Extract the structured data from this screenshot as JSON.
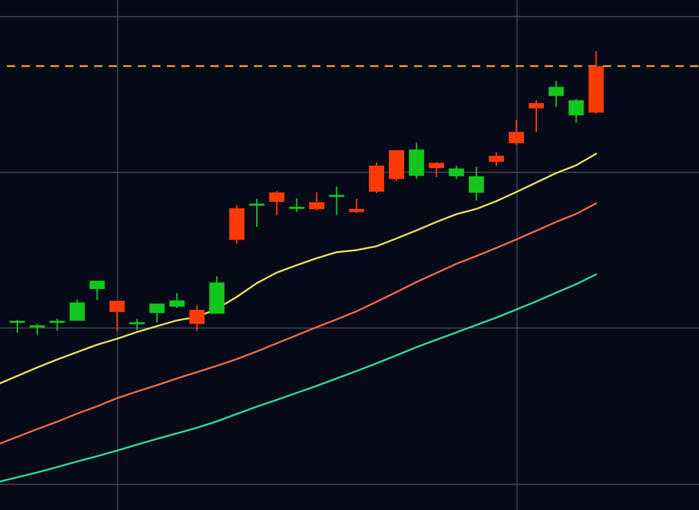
{
  "chart_data": {
    "type": "candlestick",
    "y_range": [
      0,
      14.5
    ],
    "grid": true,
    "reference_line": {
      "value": 12.62,
      "color": "#f2a51f",
      "style": "dashed"
    },
    "candles": [
      {
        "o": 5.38,
        "h": 5.4,
        "l": 5.04,
        "c": 5.38
      },
      {
        "o": 5.25,
        "h": 5.3,
        "l": 4.98,
        "c": 5.25
      },
      {
        "o": 5.38,
        "h": 5.44,
        "l": 5.1,
        "c": 5.38
      },
      {
        "o": 5.38,
        "h": 5.99,
        "l": 5.38,
        "c": 5.9
      },
      {
        "o": 6.28,
        "h": 6.46,
        "l": 5.97,
        "c": 6.52
      },
      {
        "o": 5.95,
        "h": 5.95,
        "l": 5.09,
        "c": 5.63
      },
      {
        "o": 5.34,
        "h": 5.43,
        "l": 5.13,
        "c": 5.34
      },
      {
        "o": 5.6,
        "h": 5.74,
        "l": 5.33,
        "c": 5.87
      },
      {
        "o": 5.78,
        "h": 6.17,
        "l": 5.74,
        "c": 5.96
      },
      {
        "o": 5.69,
        "h": 5.82,
        "l": 5.09,
        "c": 5.29
      },
      {
        "o": 5.58,
        "h": 6.64,
        "l": 5.6,
        "c": 6.47
      },
      {
        "o": 8.58,
        "h": 8.67,
        "l": 7.57,
        "c": 7.68
      },
      {
        "o": 8.71,
        "h": 8.85,
        "l": 8.05,
        "c": 8.71
      },
      {
        "o": 9.03,
        "h": 9.07,
        "l": 8.38,
        "c": 8.76
      },
      {
        "o": 8.62,
        "h": 8.86,
        "l": 8.47,
        "c": 8.62
      },
      {
        "o": 8.75,
        "h": 9.04,
        "l": 8.52,
        "c": 8.55
      },
      {
        "o": 8.96,
        "h": 9.19,
        "l": 8.39,
        "c": 8.96
      },
      {
        "o": 8.56,
        "h": 8.85,
        "l": 8.44,
        "c": 8.47
      },
      {
        "o": 9.79,
        "h": 9.89,
        "l": 9.01,
        "c": 9.05
      },
      {
        "o": 10.23,
        "h": 10.23,
        "l": 9.35,
        "c": 9.41
      },
      {
        "o": 9.5,
        "h": 10.44,
        "l": 9.42,
        "c": 10.25
      },
      {
        "o": 9.87,
        "h": 9.89,
        "l": 9.47,
        "c": 9.72
      },
      {
        "o": 9.49,
        "h": 9.79,
        "l": 9.41,
        "c": 9.71
      },
      {
        "o": 9.02,
        "h": 9.76,
        "l": 8.8,
        "c": 9.49
      },
      {
        "o": 10.07,
        "h": 10.17,
        "l": 9.78,
        "c": 9.9
      },
      {
        "o": 10.75,
        "h": 11.09,
        "l": 10.38,
        "c": 10.43
      },
      {
        "o": 11.57,
        "h": 11.65,
        "l": 10.75,
        "c": 11.42
      },
      {
        "o": 11.77,
        "h": 12.2,
        "l": 11.46,
        "c": 12.03
      },
      {
        "o": 11.22,
        "h": 11.69,
        "l": 11.01,
        "c": 11.65
      },
      {
        "o": 12.62,
        "h": 13.05,
        "l": 11.27,
        "c": 11.3
      }
    ],
    "series": [
      {
        "color": "#e8e05a",
        "values": [
          3.81,
          4.05,
          4.28,
          4.49,
          4.7,
          4.87,
          5.06,
          5.23,
          5.39,
          5.49,
          5.72,
          6.06,
          6.45,
          6.75,
          6.96,
          7.16,
          7.33,
          7.39,
          7.5,
          7.72,
          7.95,
          8.19,
          8.41,
          8.56,
          8.78,
          9.04,
          9.31,
          9.58,
          9.8,
          10.13
        ]
      },
      {
        "color": "#ee6a4a",
        "values": [
          2.08,
          2.3,
          2.51,
          2.74,
          2.95,
          3.18,
          3.37,
          3.55,
          3.74,
          3.92,
          4.1,
          4.29,
          4.51,
          4.74,
          4.97,
          5.2,
          5.42,
          5.65,
          5.92,
          6.2,
          6.48,
          6.74,
          7.0,
          7.22,
          7.45,
          7.69,
          7.94,
          8.19,
          8.42,
          8.72
        ]
      },
      {
        "color": "#2edc9a",
        "values": [
          0.93,
          1.07,
          1.22,
          1.38,
          1.53,
          1.69,
          1.86,
          2.02,
          2.18,
          2.34,
          2.52,
          2.73,
          2.94,
          3.13,
          3.33,
          3.53,
          3.74,
          3.95,
          4.17,
          4.4,
          4.63,
          4.84,
          5.05,
          5.26,
          5.47,
          5.7,
          5.93,
          6.18,
          6.42,
          6.7
        ]
      }
    ],
    "colors": {
      "up": "#13c71f",
      "down": "#fb3a08",
      "background": "#070a18",
      "grid": "#535768"
    }
  }
}
